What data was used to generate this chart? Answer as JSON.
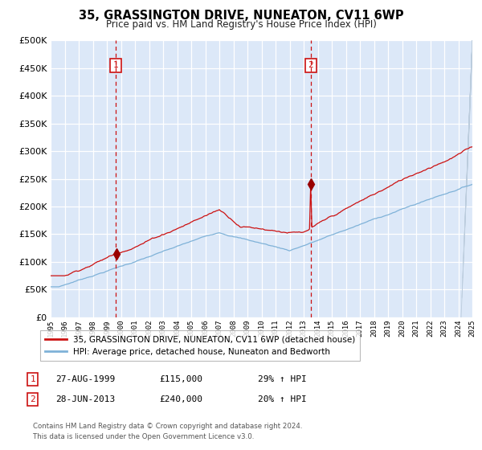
{
  "title": "35, GRASSINGTON DRIVE, NUNEATON, CV11 6WP",
  "subtitle": "Price paid vs. HM Land Registry's House Price Index (HPI)",
  "x_start_year": 1995,
  "x_end_year": 2025,
  "ylim": [
    0,
    500000
  ],
  "yticks": [
    0,
    50000,
    100000,
    150000,
    200000,
    250000,
    300000,
    350000,
    400000,
    450000,
    500000
  ],
  "fig_bg_color": "#ffffff",
  "plot_bg_color": "#dce8f8",
  "grid_color": "#ffffff",
  "hpi_line_color": "#7fb2d8",
  "price_line_color": "#cc1111",
  "marker_color": "#990000",
  "vline_color": "#cc1111",
  "purchase1_year": 1999.65,
  "purchase1_price": 115000,
  "purchase2_year": 2013.49,
  "purchase2_price": 240000,
  "legend_line1": "35, GRASSINGTON DRIVE, NUNEATON, CV11 6WP (detached house)",
  "legend_line2": "HPI: Average price, detached house, Nuneaton and Bedworth",
  "table_row1": [
    "1",
    "27-AUG-1999",
    "£115,000",
    "29% ↑ HPI"
  ],
  "table_row2": [
    "2",
    "28-JUN-2013",
    "£240,000",
    "20% ↑ HPI"
  ],
  "footnote1": "Contains HM Land Registry data © Crown copyright and database right 2024.",
  "footnote2": "This data is licensed under the Open Government Licence v3.0."
}
